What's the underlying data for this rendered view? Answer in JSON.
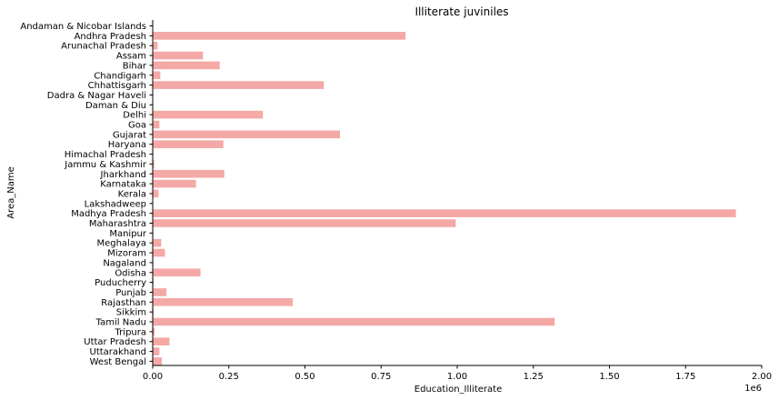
{
  "chart_data": {
    "type": "bar",
    "orientation": "horizontal",
    "title": "Illiterate juviniles",
    "xlabel": "Education_Illiterate",
    "ylabel": "Area_Name",
    "x_scale_label": "1e6",
    "xlim": [
      0,
      2000000
    ],
    "x_ticks": [
      0,
      250000,
      500000,
      750000,
      1000000,
      1250000,
      1500000,
      1750000,
      2000000
    ],
    "x_tick_labels": [
      "0.00",
      "0.25",
      "0.50",
      "0.75",
      "1.00",
      "1.25",
      "1.50",
      "1.75",
      "2.00"
    ],
    "bar_color": "#f4a9a6",
    "grid": false,
    "categories": [
      "Andaman & Nicobar Islands",
      "Andhra Pradesh",
      "Arunachal Pradesh",
      "Assam",
      "Bihar",
      "Chandigarh",
      "Chhattisgarh",
      "Dadra & Nagar Haveli",
      "Daman & Diu",
      "Delhi",
      "Goa",
      "Gujarat",
      "Haryana",
      "Himachal Pradesh",
      "Jammu & Kashmir",
      "Jharkhand",
      "Karnataka",
      "Kerala",
      "Lakshadweep",
      "Madhya Pradesh",
      "Maharashtra",
      "Manipur",
      "Meghalaya",
      "Mizoram",
      "Nagaland",
      "Odisha",
      "Puducherry",
      "Punjab",
      "Rajasthan",
      "Sikkim",
      "Tamil Nadu",
      "Tripura",
      "Uttar Pradesh",
      "Uttarakhand",
      "West Bengal"
    ],
    "values": [
      0,
      830000,
      16000,
      165000,
      220000,
      25000,
      562000,
      0,
      0,
      362000,
      22000,
      615000,
      232000,
      2000,
      5000,
      235000,
      142000,
      19000,
      0,
      1915000,
      995000,
      2000,
      28000,
      40000,
      2000,
      157000,
      3000,
      45000,
      460000,
      3000,
      1320000,
      6000,
      55000,
      22000,
      30000
    ]
  }
}
